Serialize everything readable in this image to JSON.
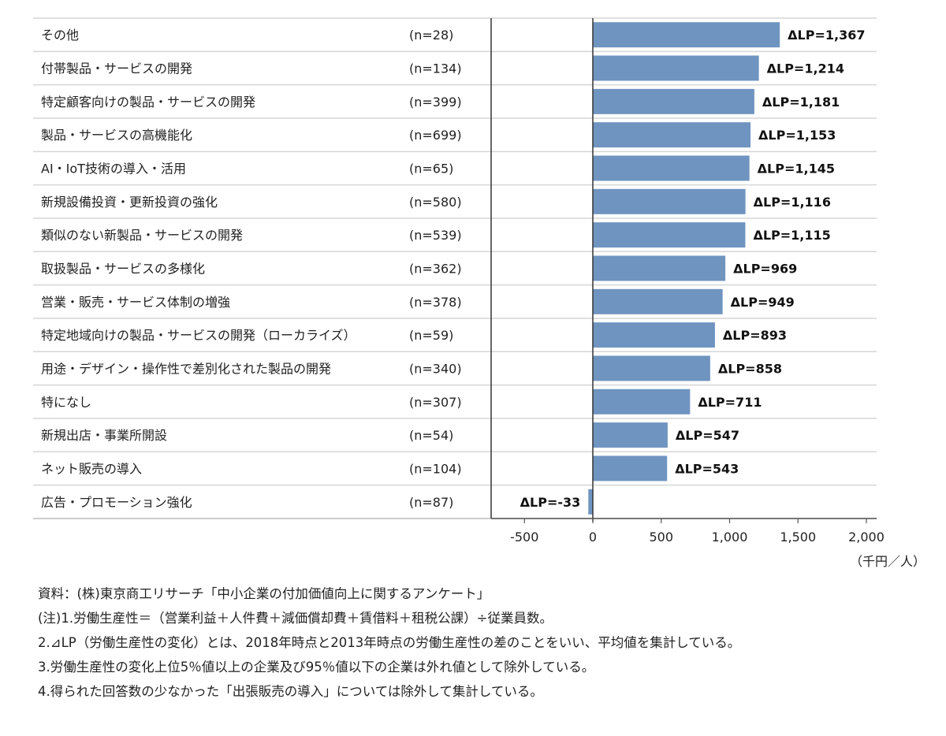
{
  "chart_data": {
    "type": "bar",
    "orientation": "horizontal",
    "value_prefix": "ΔLP=",
    "categories": [
      "その他",
      "付帯製品・サービスの開発",
      "特定顧客向けの製品・サービスの開発",
      "製品・サービスの高機能化",
      "AI・IoT技術の導入・活用",
      "新規設備投資・更新投資の強化",
      "類似のない新製品・サービスの開発",
      "取扱製品・サービスの多様化",
      "営業・販売・サービス体制の増強",
      "特定地域向けの製品・サービスの開発（ローカライズ）",
      "用途・デザイン・操作性で差別化された製品の開発",
      "特になし",
      "新規出店・事業所開設",
      "ネット販売の導入",
      "広告・プロモーション強化"
    ],
    "n_labels": [
      "(n=28)",
      "(n=134)",
      "(n=399)",
      "(n=699)",
      "(n=65)",
      "(n=580)",
      "(n=539)",
      "(n=362)",
      "(n=378)",
      "(n=59)",
      "(n=340)",
      "(n=307)",
      "(n=54)",
      "(n=104)",
      "(n=87)"
    ],
    "values": [
      1367,
      1214,
      1181,
      1153,
      1145,
      1116,
      1115,
      969,
      949,
      893,
      858,
      711,
      547,
      543,
      -33
    ],
    "value_labels": [
      "ΔLP=1,367",
      "ΔLP=1,214",
      "ΔLP=1,181",
      "ΔLP=1,153",
      "ΔLP=1,145",
      "ΔLP=1,116",
      "ΔLP=1,115",
      "ΔLP=969",
      "ΔLP=949",
      "ΔLP=893",
      "ΔLP=858",
      "ΔLP=711",
      "ΔLP=547",
      "ΔLP=543",
      "ΔLP=-33"
    ],
    "xlim": [
      -750,
      2000
    ],
    "xticks": [
      -500,
      0,
      500,
      1000,
      1500,
      2000
    ],
    "xtick_labels": [
      "-500",
      "0",
      "500",
      "1,000",
      "1,500",
      "2,000"
    ],
    "unit": "（千円／人）",
    "grid": false,
    "bar_color": "#6f94c0"
  },
  "notes": [
    "資料：(株)東京商工リサーチ「中小企業の付加価値向上に関するアンケート」",
    "(注)1.労働生産性＝（営業利益＋人件費＋減価償却費＋賃借料＋租税公課）÷従業員数。",
    "2.⊿LP（労働生産性の変化）とは、2018年時点と2013年時点の労働生産性の差のことをいい、平均値を集計している。",
    "3.労働生産性の変化上位5％値以上の企業及び95％値以下の企業は外れ値として除外している。",
    "4.得られた回答数の少なかった「出張販売の導入」については除外して集計している。"
  ]
}
